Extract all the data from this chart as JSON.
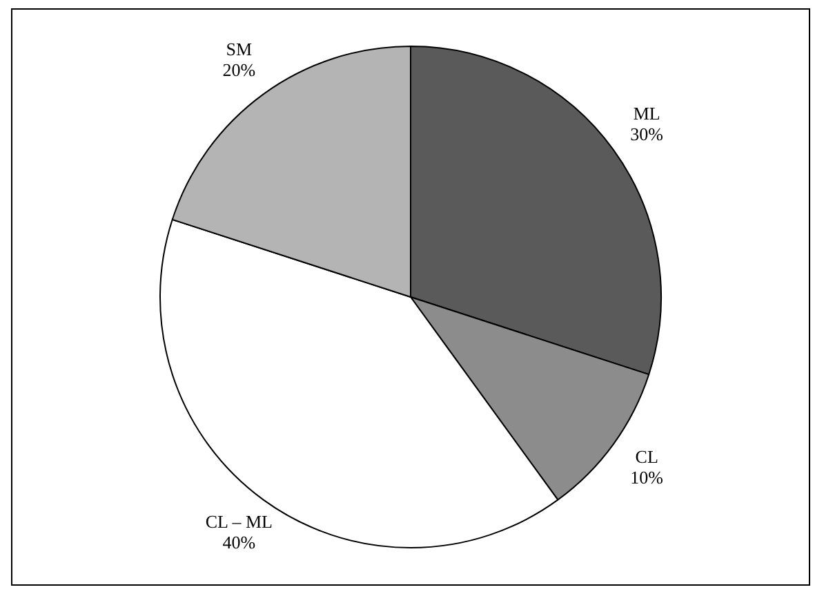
{
  "chart_data": {
    "type": "pie",
    "categories": [
      "ML",
      "CL",
      "CL – ML",
      "SM"
    ],
    "values": [
      30,
      10,
      40,
      20
    ],
    "colors": [
      "#5a5a5a",
      "#8c8c8c",
      "#ffffff",
      "#b4b4b4"
    ],
    "value_labels": [
      "30%",
      "10%",
      "40%",
      "20%"
    ],
    "legend": false
  }
}
